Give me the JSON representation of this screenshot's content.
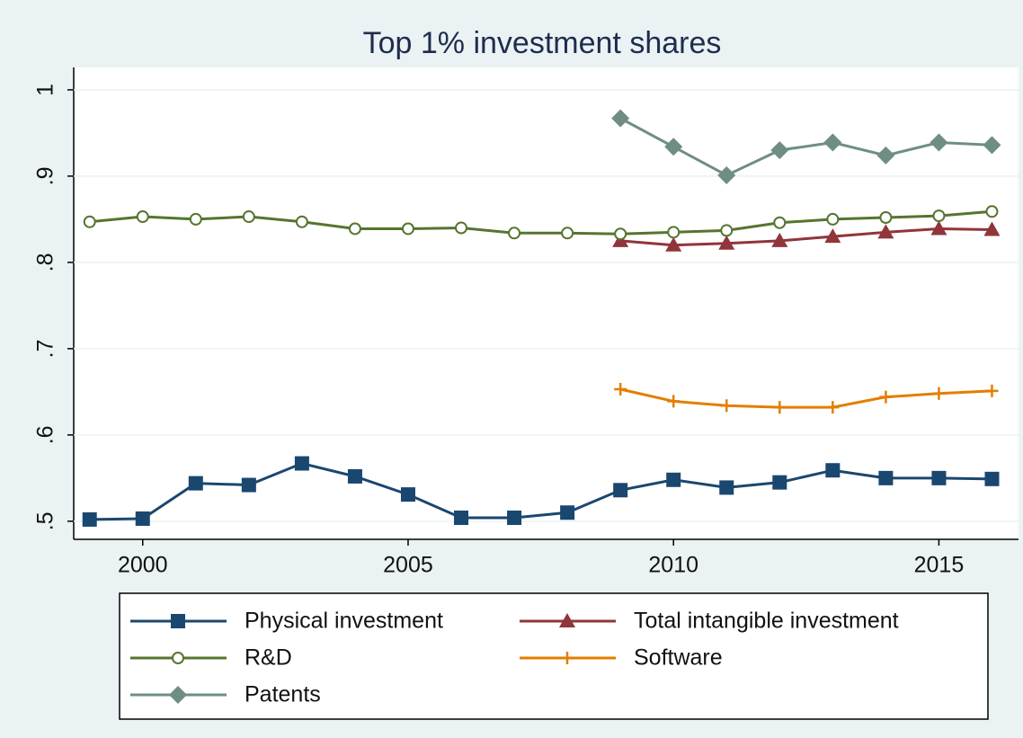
{
  "chart_data": {
    "type": "line",
    "title": "Top 1% investment shares",
    "x": [
      1999,
      2000,
      2001,
      2002,
      2003,
      2004,
      2005,
      2006,
      2007,
      2008,
      2009,
      2010,
      2011,
      2012,
      2013,
      2014,
      2015,
      2016
    ],
    "xlim": [
      1998.7,
      2016.5
    ],
    "xticks": [
      2000,
      2005,
      2010,
      2015
    ],
    "ylim": [
      0.479,
      1.026
    ],
    "yticks": [
      {
        "value": 0.5,
        "label": ".5"
      },
      {
        "value": 0.6,
        "label": ".6"
      },
      {
        "value": 0.7,
        "label": ".7"
      },
      {
        "value": 0.8,
        "label": ".8"
      },
      {
        "value": 0.9,
        "label": ".9"
      },
      1
    ],
    "grid": true,
    "series": [
      {
        "name": "Physical investment",
        "color": "#1a476f",
        "marker": "square",
        "values": [
          0.502,
          0.503,
          0.544,
          0.542,
          0.567,
          0.552,
          0.531,
          0.504,
          0.504,
          0.51,
          0.536,
          0.548,
          0.539,
          0.545,
          0.559,
          0.55,
          0.55,
          0.549
        ]
      },
      {
        "name": "Total intangible investment",
        "color": "#90353b",
        "marker": "triangle",
        "values": [
          null,
          null,
          null,
          null,
          null,
          null,
          null,
          null,
          null,
          null,
          0.825,
          0.82,
          0.822,
          0.825,
          0.83,
          0.835,
          0.839,
          0.838
        ]
      },
      {
        "name": "R&D",
        "color": "#55752f",
        "marker": "circle",
        "values": [
          0.847,
          0.853,
          0.85,
          0.853,
          0.847,
          0.839,
          0.839,
          0.84,
          0.834,
          0.834,
          0.833,
          0.835,
          0.837,
          0.846,
          0.85,
          0.852,
          0.854,
          0.859
        ]
      },
      {
        "name": "Software",
        "color": "#e37e00",
        "marker": "plus",
        "values": [
          null,
          null,
          null,
          null,
          null,
          null,
          null,
          null,
          null,
          null,
          0.653,
          0.639,
          0.634,
          0.632,
          0.632,
          0.644,
          0.648,
          0.651
        ]
      },
      {
        "name": "Patents",
        "color": "#6e8e84",
        "marker": "diamond",
        "values": [
          null,
          null,
          null,
          null,
          null,
          null,
          null,
          null,
          null,
          null,
          0.967,
          0.934,
          0.901,
          0.93,
          0.939,
          0.924,
          0.939,
          0.936
        ]
      }
    ]
  }
}
